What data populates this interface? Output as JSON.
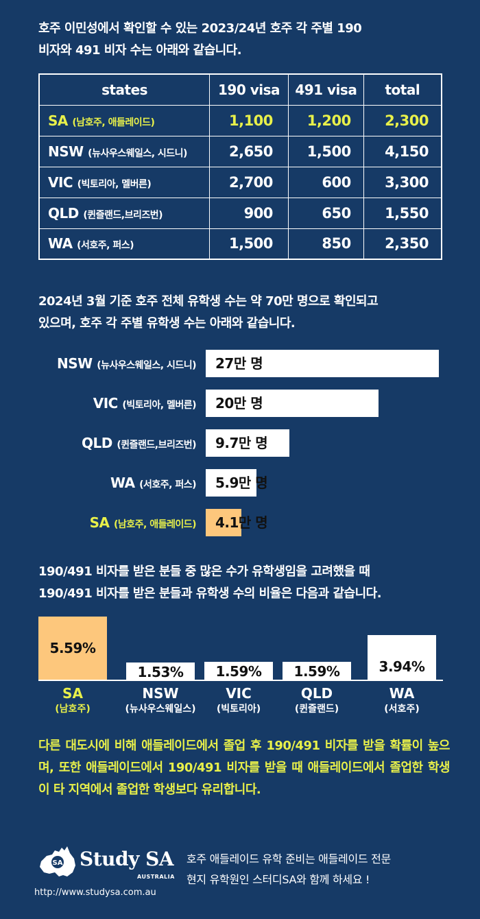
{
  "intro1": "호주 이민성에서 확인할 수 있는 2023/24년 호주 각 주별 190\n비자와 491 비자 수는 아래와 같습니다.",
  "visa_table": {
    "headers": [
      "states",
      "190 visa",
      "491 visa",
      "total"
    ],
    "rows": [
      {
        "code": "SA",
        "name": "(남호주, 애들레이드)",
        "v190": "1,100",
        "v491": "1,200",
        "total": "2,300"
      },
      {
        "code": "NSW",
        "name": "(뉴사우스웨일스, 시드니)",
        "v190": "2,650",
        "v491": "1,500",
        "total": "4,150"
      },
      {
        "code": "VIC",
        "name": "(빅토리아, 멜버른)",
        "v190": "2,700",
        "v491": "600",
        "total": "3,300"
      },
      {
        "code": "QLD",
        "name": "(퀸즐랜드,브리즈번)",
        "v190": "900",
        "v491": "650",
        "total": "1,550"
      },
      {
        "code": "WA",
        "name": "(서호주, 퍼스)",
        "v190": "1,500",
        "v491": "850",
        "total": "2,350"
      }
    ]
  },
  "intro2": "2024년 3월 기준 호주 전체 유학생 수는 약 70만 명으로 확인되고\n있으며, 호주 각 주별 유학생 수는 아래와 같습니다.",
  "students": [
    {
      "code": "NSW",
      "name": "(뉴사우스웨일스, 시드니)",
      "label": "27만 명",
      "value": 27
    },
    {
      "code": "VIC",
      "name": "(빅토리아, 멜버른)",
      "label": "20만 명",
      "value": 20
    },
    {
      "code": "QLD",
      "name": "(퀸즐랜드,브리즈번)",
      "label": "9.7만 명",
      "value": 9.7
    },
    {
      "code": "WA",
      "name": "(서호주, 퍼스)",
      "label": "5.9만 명",
      "value": 5.9
    },
    {
      "code": "SA",
      "name": "(남호주, 애들레이드)",
      "label": "4.1만 명",
      "value": 4.1
    }
  ],
  "intro3": "190/491 비자를 받은 분들 중 많은 수가 유학생임을 고려했을 때\n190/491 비자를 받은 분들과 유학생 수의 비율은 다음과 같습니다.",
  "ratios": [
    {
      "code": "SA",
      "name": "(남호주)",
      "label": "5.59%",
      "value": 5.59
    },
    {
      "code": "NSW",
      "name": "(뉴사우스웨일스)",
      "label": "1.53%",
      "value": 1.53
    },
    {
      "code": "VIC",
      "name": "(빅토리아)",
      "label": "1.59%",
      "value": 1.59
    },
    {
      "code": "QLD",
      "name": "(퀸즐랜드)",
      "label": "1.59%",
      "value": 1.59
    },
    {
      "code": "WA",
      "name": "(서호주)",
      "label": "3.94%",
      "value": 3.94
    }
  ],
  "conclusion": "다른 대도시에 비해 애들레이드에서 졸업 후 190/491 비자를 받을 확률이 높으며, 또한 애들레이드에서 190/491 비자를 받을 때 애들레이드에서 졸업한 학생이 타 지역에서 졸업한 학생보다 유리합니다.",
  "footer": {
    "logo_text": "Study SA",
    "logo_sub": "AUSTRALIA",
    "logo_badge": "SA",
    "url": "http://www.studysa.com.au",
    "message": "호주 애들레이드 유학 준비는 애들레이드 전문\n현지 유학원인 스터디SA와 함께 하세요 !"
  },
  "colors": {
    "background": "#163a66",
    "highlight_text": "#e8f04a",
    "highlight_bar": "#fdc77c"
  }
}
